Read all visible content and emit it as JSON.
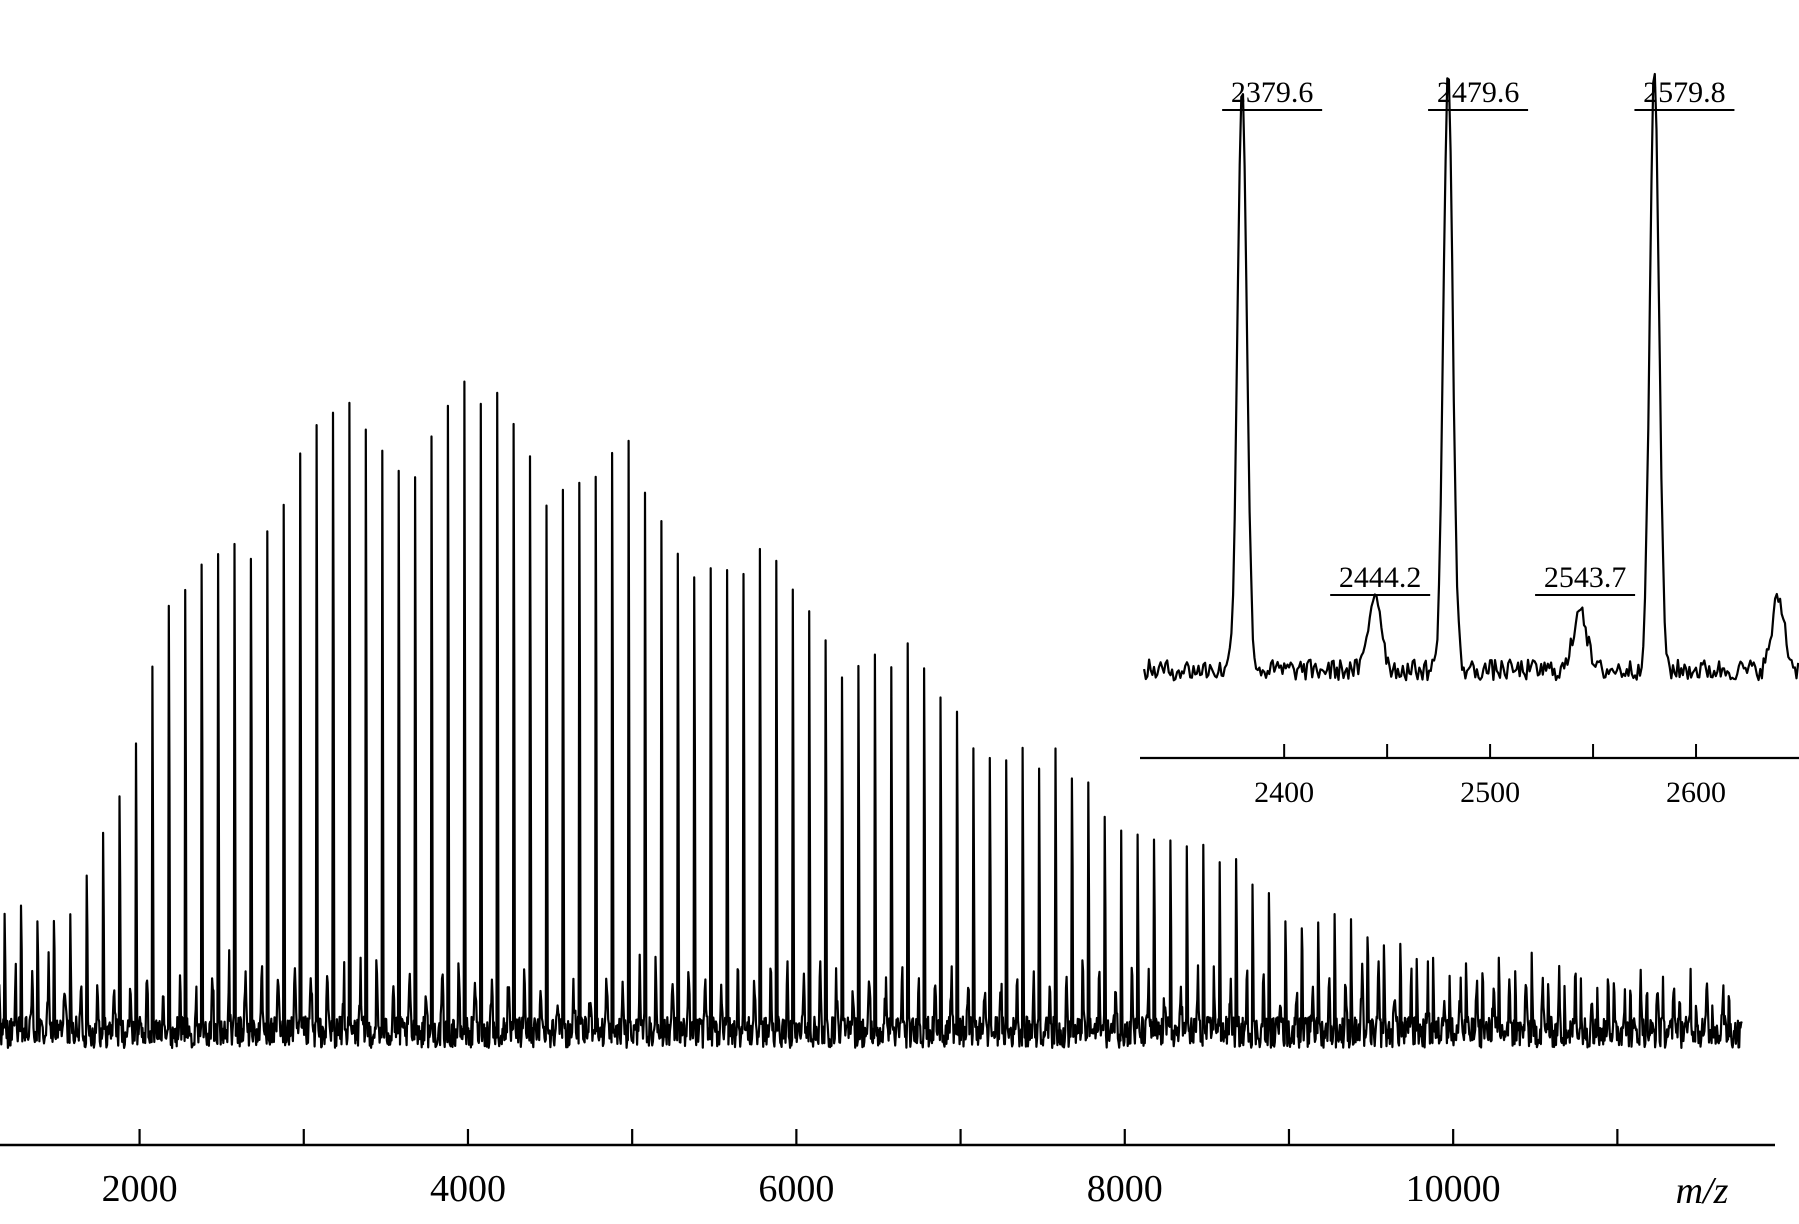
{
  "chart_data": [
    {
      "type": "line",
      "title": "",
      "xlabel": "m/z",
      "ylabel": "",
      "xlim": [
        1150,
        11960
      ],
      "x_ticks_major": [
        2000,
        4000,
        6000,
        8000,
        10000
      ],
      "x_tick_labels": [
        "2000",
        "4000",
        "6000",
        "8000",
        "10000"
      ],
      "x_ticks_minor": [
        3000,
        5000,
        7000,
        9000,
        11000
      ],
      "y_axis_shown": false,
      "grid": false,
      "series": [
        {
          "peak_mz_start": 1179.6,
          "peak_spacing": 100,
          "peak_count": 106,
          "baseline_level": 0.055,
          "envelope": {
            "x": [
              1180,
              1500,
              1700,
              1900,
              2200,
              2500,
              2800,
              3100,
              3400,
              3700,
              4000,
              4300,
              4600,
              5000,
              5400,
              5800,
              6200,
              6600,
              7000,
              7400,
              7800,
              8200,
              8600,
              9000,
              9400,
              9800,
              10200,
              10600,
              11000,
              11300,
              11760
            ],
            "y": [
              0.17,
              0.18,
              0.25,
              0.42,
              0.63,
              0.76,
              0.85,
              0.9,
              0.93,
              0.95,
              0.94,
              0.93,
              0.9,
              0.84,
              0.77,
              0.71,
              0.64,
              0.57,
              0.5,
              0.44,
              0.37,
              0.3,
              0.25,
              0.2,
              0.16,
              0.13,
              0.11,
              0.09,
              0.07,
              0.065,
              0.06
            ]
          }
        }
      ]
    },
    {
      "type": "line",
      "title": "",
      "xlabel": "",
      "ylabel": "",
      "xlim": [
        2330,
        2650
      ],
      "x_ticks_major": [
        2400,
        2500,
        2600
      ],
      "x_tick_labels": [
        "2400",
        "2500",
        "2600"
      ],
      "x_ticks_minor": [
        2450,
        2550,
        2650
      ],
      "y_axis_shown": false,
      "grid": false,
      "series": [
        {
          "peaks": [
            {
              "x": 2379.6,
              "height": 0.98
            },
            {
              "x": 2444.2,
              "height": 0.13
            },
            {
              "x": 2479.6,
              "height": 1.0
            },
            {
              "x": 2543.7,
              "height": 0.11
            },
            {
              "x": 2579.8,
              "height": 1.0
            },
            {
              "x": 2640.0,
              "height": 0.12
            }
          ],
          "baseline_level": 0.05
        }
      ],
      "annotations": [
        {
          "x": 2379.6,
          "text": "2379.6"
        },
        {
          "x": 2444.2,
          "text": "2444.2"
        },
        {
          "x": 2479.6,
          "text": "2479.6"
        },
        {
          "x": 2543.7,
          "text": "2543.7"
        },
        {
          "x": 2579.8,
          "text": "2579.8"
        }
      ]
    }
  ]
}
